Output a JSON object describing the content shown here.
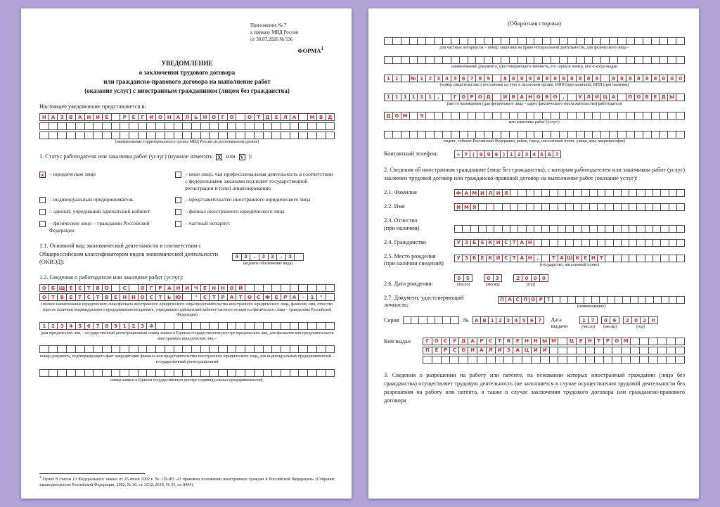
{
  "colors": {
    "background": "#b1a3d4",
    "paper": "#ffffff",
    "ink": "#1a1a1a",
    "fill_red": "#d2332b",
    "cell_border": "#4a4a4a"
  },
  "left": {
    "ref_lines": [
      "Приложение № 7",
      "к приказу МВД России",
      "от 30.07.2020 № 536"
    ],
    "forma": "ФОРМА",
    "forma_sup": "1",
    "title": [
      "УВЕДОМЛЕНИЕ",
      "о заключении трудового договора",
      "или гражданско-правового договора на выполнение работ",
      "(оказание услуг) с иностранным гражданином (лицом без гражданства)"
    ],
    "presented_to": "Настоящее уведомление представляется в:",
    "org_rows": [
      {
        "t": "НАЗВАНИЕ РЕГИОНАЛЬНОГО ОТДЕЛА МВД",
        "n": 33
      },
      {
        "t": "",
        "n": 33
      },
      {
        "t": "",
        "n": 33
      }
    ],
    "org_caption": "(наименование территориального органа МВД России на региональном уровне)",
    "status": {
      "pre": "1. Статус работодателя или заказчика работ (услуг) (нужное отметить",
      "x_mark": "Х",
      "or_word": "или",
      "v_mark": "V",
      "post": "):",
      "rows": [
        {
          "left": {
            "mark": "х",
            "label": "– юридическое лицо"
          },
          "right": {
            "mark": "",
            "label": "– иное лицо, чья профессиональная деятельность в соответствии с федеральными законами подлежит государственной регистрации и (или) лицензированию"
          }
        },
        {
          "left": {
            "mark": "",
            "label": "– индивидуальный предприниматель"
          },
          "right": {
            "mark": "",
            "label": "– представительство иностранного юридического лица"
          }
        },
        {
          "left": {
            "mark": "",
            "label": "– адвокат, учредивший адвокатский кабинет"
          },
          "right": {
            "mark": "",
            "label": "– филиал иностранного юридического лица"
          }
        },
        {
          "left": {
            "mark": "",
            "label": "– физическое лицо – гражданин Российской Федерации"
          },
          "right": {
            "mark": "",
            "label": "– частный нотариус"
          }
        }
      ]
    },
    "okved": {
      "label": "1.1. Основной вид экономической деятельности в соответствии с Общероссийским классификатором видов экономической деятельности (ОКВЭД):",
      "cells": {
        "t": "43.32.3",
        "n": 8
      },
      "caption": "(кодовое обозначение вида)"
    },
    "p12_label": "1.2. Сведения о работодателе или заказчике работ (услуг):",
    "employer_rows": [
      {
        "t": "ОБЩЕСТВО С ОГРАНИЧЕННОЙ",
        "n": 33
      },
      {
        "t": "ОТВЕТСТВЕННОСТЬЮ \"СТРАТОСФЕРА-1\"",
        "n": 33
      }
    ],
    "employer_caption": "(полное наименование юридического лица/филиала иностранного юридического лица/представительства иностранного юридического лица, фамилия, имя, отчество (при их наличии) индивидуального предпринимателя/адвоката, учредившего адвокатский кабинет/частного нотариуса/физического лица – гражданина Российской Федерации)",
    "ogrn_row": {
      "t": "1234567891234",
      "n": 33
    },
    "ogrn_caption": "(для юридических лиц – государственный регистрационный номер записи в Едином государственном реестре юридических лиц, для филиалов или представительств иностранных юридических лиц –",
    "accr_row": {
      "t": "",
      "n": 33
    },
    "accr_caption": "номер документа, подтверждающего факт аккредитации филиала или представительства иностранного юридического лица, для индивидуальных предпринимателей – государственный регистрационный",
    "egrip_row": {
      "t": "",
      "n": 33
    },
    "egrip_caption": "номер записи в Едином государственном реестре индивидуальных предпринимателей,",
    "footnote_sup": "1",
    "footnote": "Пункт 8 статьи 13 Федерального закона от 25 июля 2002 г. № 115-ФЗ «О правовом положении иностранных граждан в Российской Федерации» (Собрание законодательства Российской Федерации, 2002, № 30, ст. 3032; 2018, № 53, ст. 8454)."
  },
  "right": {
    "back_title": "(Оборотная сторона)",
    "notary_row": {
      "t": "",
      "n": 36
    },
    "notary_caption": "для частных нотариусов – номер лицензии на право нотариальной деятельности, для физического лица –",
    "iddoc_row": {
      "t": "",
      "n": 36
    },
    "iddoc_caption": "наименование документа, удостоверяющего личность, его серия и номер, кем и когда выдан",
    "tax_row": {
      "t": "11 №123456789 888888888888 888888000",
      "n": 36
    },
    "tax_caption": "(номер свидетельства о постановке на учет в налоговом органе, ИНН (при наличии), КПП (при наличии)",
    "addr_row1": {
      "t": "111111, ГОРОД ИВАНОВО, УЛИЦА ПОБЕДЫ",
      "n": 36
    },
    "addr_caption1": "(место нахождения (для физического лица – адрес фактического места жительства) работодателя",
    "addr_row2": {
      "t": "ДОМ 5",
      "n": 36
    },
    "addr_caption2": "или заказчика работ (услуг):",
    "addr_row3": {
      "t": "",
      "n": 36
    },
    "addr_caption3": "индекс, субъект Российской Федерации, район, город, населенный пункт, улица, дом, квартира/офис)",
    "phone_label": "Контактный телефон:",
    "phone_cells": {
      "t": "+7(999)1234567",
      "n": 14
    },
    "section2": "2. Сведения об иностранном гражданине (лице без гражданства), с которым работодателем или заказчиком работ (услуг) заключен трудовой договор или гражданско-правовой договор на выполнение работ (оказание услуг):",
    "f21_label": "2.1. Фамилия",
    "f21_cells": {
      "t": "ФАМИЛИЯ",
      "n": 29
    },
    "f22_label": "2.2. Имя",
    "f22_cells": {
      "t": "ИМЯ",
      "n": 29
    },
    "f23_label": "2.3. Отчество",
    "f23_label2": "(при наличии)",
    "f23_cells": {
      "t": "",
      "n": 29
    },
    "f24_label": "2.4. Гражданство",
    "f24_cells": {
      "t": "УЗБЕКИСТАН",
      "n": 29
    },
    "f25_label": "2.5. Место рождения",
    "f25_label2": "(при наличии сведений)",
    "f25_cells": {
      "t": "УЗБЕКИСТАН, ТАШКЕНТ",
      "n": 29
    },
    "f25_caption": "(государство, населенный пункт)",
    "f26_label": "2.6. Дата рождения:",
    "dob_day": {
      "t": "05",
      "n": 2
    },
    "dob_day_cap": "(число)",
    "dob_month": {
      "t": "03",
      "n": 2
    },
    "dob_month_cap": "(месяц)",
    "dob_year": {
      "t": "2000",
      "n": 4
    },
    "dob_year_cap": "(год)",
    "f27_label": "2.7. Документ, удостоверяющий",
    "f27_label2": "личность:",
    "f27_cells": {
      "t": "ПАСПОРТ",
      "n": 24
    },
    "f27_caption": "(наименование)",
    "series_label": "Серия",
    "series_cells": {
      "t": "",
      "n": 7
    },
    "number_sign": "№",
    "number_cells": {
      "t": "AB1234567",
      "n": 9
    },
    "issue_label1": "Дата",
    "issue_label2": "выдачи",
    "issue_day": {
      "t": "17",
      "n": 2
    },
    "issue_day_cap": "(число)",
    "issue_month": {
      "t": "06",
      "n": 2
    },
    "issue_month_cap": "(месяц)",
    "issue_year": {
      "t": "2020",
      "n": 4
    },
    "issue_year_cap": "(год)",
    "issuer_label": "Кем выдан",
    "issuer_rows": [
      {
        "t": "ГОСУДАРСТВЕННЫМ ЦЕНТРОМ",
        "n": 29
      },
      {
        "t": "ПЕРСОНАЛИЗАЦИИ",
        "n": 29
      },
      {
        "t": "",
        "n": 29
      }
    ],
    "section3": "3. Сведения о разрешении на работу или патенте, на основании которых иностранный гражданин (лицо без гражданства) осуществляет трудовую деятельность (не заполняется в случае осуществления трудовой деятельности без разрешения на работу или патента, а также в случае заключения трудового договора или гражданско-правового договора"
  }
}
